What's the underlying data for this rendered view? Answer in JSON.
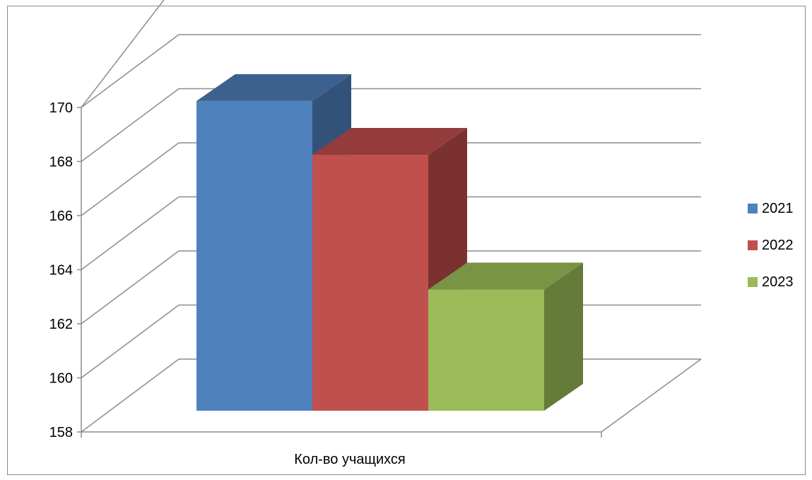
{
  "chart_data": {
    "type": "bar",
    "style": "3d-clustered-column",
    "categories": [
      "Кол-во учащихся"
    ],
    "series": [
      {
        "name": "2021",
        "values": [
          169.5
        ],
        "color": "#4f81bd",
        "top_color": "#3d618f",
        "side_color": "#33527a"
      },
      {
        "name": "2022",
        "values": [
          167.5
        ],
        "color": "#c0504d",
        "top_color": "#943c3b",
        "side_color": "#7b3130"
      },
      {
        "name": "2023",
        "values": [
          162.5
        ],
        "color": "#9bbb59",
        "top_color": "#7a9445",
        "side_color": "#657b39"
      }
    ],
    "y_ticks": [
      "158",
      "160",
      "162",
      "164",
      "166",
      "168",
      "170"
    ],
    "ylim": [
      158,
      170
    ],
    "grid": true,
    "legend_position": "right"
  }
}
